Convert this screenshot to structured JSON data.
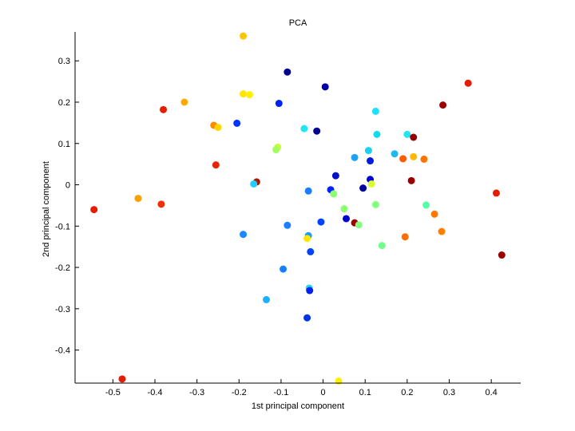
{
  "chart_data": {
    "type": "scatter",
    "title": "PCA",
    "xlabel": "1st principal component",
    "ylabel": "2nd principal component",
    "xlim": [
      -0.59,
      0.47
    ],
    "ylim": [
      -0.48,
      0.37
    ],
    "xticks": [
      -0.5,
      -0.4,
      -0.3,
      -0.2,
      -0.1,
      0,
      0.1,
      0.2,
      0.3,
      0.4
    ],
    "xtick_labels": [
      "-0.5",
      "-0.4",
      "-0.3",
      "-0.2",
      "-0.1",
      "0",
      "0.1",
      "0.2",
      "0.3",
      "0.4"
    ],
    "yticks": [
      -0.4,
      -0.3,
      -0.2,
      -0.1,
      0,
      0.1,
      0.2,
      0.3
    ],
    "ytick_labels": [
      "-0.4",
      "-0.3",
      "-0.2",
      "-0.1",
      "0",
      "0.1",
      "0.2",
      "0.3"
    ],
    "grid": false,
    "box": "left-bottom",
    "colormap": "jet",
    "points": [
      {
        "x": -0.19,
        "y": 0.36,
        "color": "#ffc400"
      },
      {
        "x": -0.085,
        "y": 0.273,
        "color": "#00008f"
      },
      {
        "x": 0.005,
        "y": 0.237,
        "color": "#0000a8"
      },
      {
        "x": 0.345,
        "y": 0.246,
        "color": "#e61c00"
      },
      {
        "x": -0.19,
        "y": 0.22,
        "color": "#ffe500"
      },
      {
        "x": -0.175,
        "y": 0.218,
        "color": "#fff000"
      },
      {
        "x": -0.33,
        "y": 0.2,
        "color": "#ffaa00"
      },
      {
        "x": -0.105,
        "y": 0.197,
        "color": "#0022f0"
      },
      {
        "x": -0.38,
        "y": 0.182,
        "color": "#e61c00"
      },
      {
        "x": 0.285,
        "y": 0.193,
        "color": "#9b0000"
      },
      {
        "x": 0.125,
        "y": 0.178,
        "color": "#1fe0ff"
      },
      {
        "x": -0.205,
        "y": 0.149,
        "color": "#0033ff"
      },
      {
        "x": -0.26,
        "y": 0.144,
        "color": "#ff8a00"
      },
      {
        "x": -0.25,
        "y": 0.139,
        "color": "#ffd400"
      },
      {
        "x": -0.045,
        "y": 0.136,
        "color": "#22e4f2"
      },
      {
        "x": -0.015,
        "y": 0.13,
        "color": "#00008f"
      },
      {
        "x": 0.128,
        "y": 0.122,
        "color": "#11dcef"
      },
      {
        "x": 0.2,
        "y": 0.122,
        "color": "#22e4f2"
      },
      {
        "x": 0.215,
        "y": 0.115,
        "color": "#8f0000"
      },
      {
        "x": -0.108,
        "y": 0.091,
        "color": "#c9ff33"
      },
      {
        "x": -0.112,
        "y": 0.085,
        "color": "#a0ff5f"
      },
      {
        "x": 0.108,
        "y": 0.083,
        "color": "#1ad1f0"
      },
      {
        "x": 0.17,
        "y": 0.075,
        "color": "#1fb8f2"
      },
      {
        "x": 0.075,
        "y": 0.066,
        "color": "#1aa2f5"
      },
      {
        "x": 0.215,
        "y": 0.068,
        "color": "#ffb800"
      },
      {
        "x": 0.19,
        "y": 0.063,
        "color": "#ff5a00"
      },
      {
        "x": 0.24,
        "y": 0.062,
        "color": "#ff7300"
      },
      {
        "x": 0.112,
        "y": 0.058,
        "color": "#001ae0"
      },
      {
        "x": -0.255,
        "y": 0.048,
        "color": "#e82400"
      },
      {
        "x": 0.03,
        "y": 0.022,
        "color": "#0011c7"
      },
      {
        "x": 0.112,
        "y": 0.013,
        "color": "#0000d8"
      },
      {
        "x": 0.21,
        "y": 0.01,
        "color": "#9b0000"
      },
      {
        "x": -0.158,
        "y": 0.007,
        "color": "#a81a00"
      },
      {
        "x": -0.165,
        "y": 0.002,
        "color": "#1fcfff"
      },
      {
        "x": 0.115,
        "y": 0.002,
        "color": "#d8ff2b"
      },
      {
        "x": 0.095,
        "y": -0.008,
        "color": "#00009b"
      },
      {
        "x": 0.018,
        "y": -0.012,
        "color": "#0022ff"
      },
      {
        "x": -0.035,
        "y": -0.015,
        "color": "#1a7fff"
      },
      {
        "x": 0.025,
        "y": -0.022,
        "color": "#8cff70"
      },
      {
        "x": -0.545,
        "y": -0.06,
        "color": "#e61c00"
      },
      {
        "x": -0.44,
        "y": -0.033,
        "color": "#ffa000"
      },
      {
        "x": -0.385,
        "y": -0.047,
        "color": "#f03000"
      },
      {
        "x": 0.245,
        "y": -0.049,
        "color": "#55ffa6"
      },
      {
        "x": 0.125,
        "y": -0.048,
        "color": "#82ff7c"
      },
      {
        "x": 0.05,
        "y": -0.058,
        "color": "#8cff70"
      },
      {
        "x": 0.265,
        "y": -0.071,
        "color": "#ff7a00"
      },
      {
        "x": 0.055,
        "y": -0.082,
        "color": "#0000d0"
      },
      {
        "x": -0.005,
        "y": -0.09,
        "color": "#0044ff"
      },
      {
        "x": 0.075,
        "y": -0.092,
        "color": "#9b0000"
      },
      {
        "x": 0.085,
        "y": -0.097,
        "color": "#82ff7c"
      },
      {
        "x": -0.085,
        "y": -0.098,
        "color": "#1a7fff"
      },
      {
        "x": 0.282,
        "y": -0.113,
        "color": "#ff8000"
      },
      {
        "x": -0.19,
        "y": -0.12,
        "color": "#1a88ff"
      },
      {
        "x": -0.035,
        "y": -0.123,
        "color": "#1a9cff"
      },
      {
        "x": 0.195,
        "y": -0.126,
        "color": "#ff6e00"
      },
      {
        "x": -0.038,
        "y": -0.13,
        "color": "#ffe600"
      },
      {
        "x": 0.14,
        "y": -0.147,
        "color": "#70ff8a"
      },
      {
        "x": 0.412,
        "y": -0.02,
        "color": "#e61c00"
      },
      {
        "x": 0.425,
        "y": -0.17,
        "color": "#9b0000"
      },
      {
        "x": -0.03,
        "y": -0.162,
        "color": "#0044ff"
      },
      {
        "x": -0.095,
        "y": -0.204,
        "color": "#1a7fff"
      },
      {
        "x": -0.033,
        "y": -0.25,
        "color": "#1fd6ee"
      },
      {
        "x": -0.032,
        "y": -0.256,
        "color": "#0022f0"
      },
      {
        "x": -0.135,
        "y": -0.278,
        "color": "#1aafff"
      },
      {
        "x": -0.038,
        "y": -0.322,
        "color": "#0033e6"
      },
      {
        "x": -0.478,
        "y": -0.47,
        "color": "#e61c00"
      },
      {
        "x": 0.037,
        "y": -0.475,
        "color": "#fff000"
      }
    ]
  }
}
